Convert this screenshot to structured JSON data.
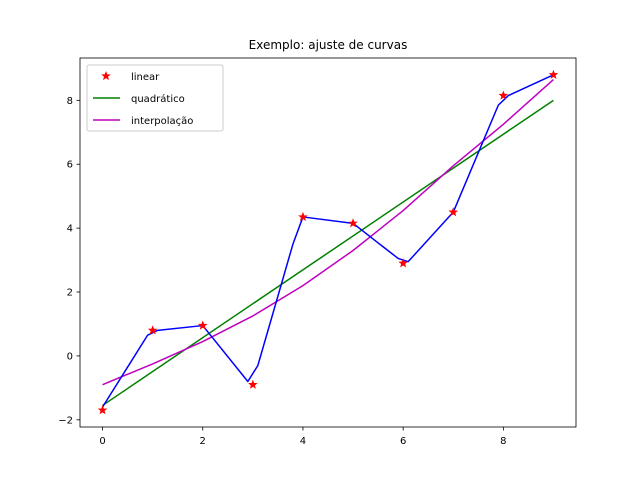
{
  "chart_data": {
    "type": "line",
    "title": "Exemplo: ajuste de curvas",
    "xlabel": "",
    "ylabel": "",
    "xlim": [
      -0.45,
      9.45
    ],
    "ylim": [
      -2.225,
      9.325
    ],
    "xticks": [
      0,
      2,
      4,
      6,
      8
    ],
    "yticks": [
      -2,
      0,
      2,
      4,
      6,
      8
    ],
    "grid": false,
    "legend_position": "upper-left",
    "series": [
      {
        "name": "linear",
        "kind": "markers",
        "marker": "star",
        "color": "#ff0000",
        "x": [
          0,
          1,
          2,
          3,
          4,
          5,
          6,
          7,
          8,
          9
        ],
        "y": [
          -1.7,
          0.8,
          0.95,
          -0.9,
          4.35,
          4.15,
          2.9,
          4.5,
          8.15,
          8.8
        ]
      },
      {
        "name": "quadrático",
        "kind": "line",
        "color": "#008000",
        "x": [
          0,
          9
        ],
        "y": [
          -1.55,
          8.0
        ]
      },
      {
        "name": "interpolação",
        "kind": "line",
        "color": "#bf00bf",
        "x": [
          0,
          1,
          2,
          3,
          4,
          5,
          6,
          7,
          8,
          9
        ],
        "y": [
          -0.9,
          -0.25,
          0.45,
          1.25,
          2.2,
          3.3,
          4.55,
          5.95,
          7.25,
          8.65
        ]
      },
      {
        "name": "",
        "kind": "line",
        "color": "#0000ff",
        "x": [
          0,
          0.9,
          1.1,
          2.0,
          2.9,
          3.1,
          3.8,
          4.0,
          5.0,
          5.9,
          6.1,
          7.0,
          7.9,
          8.1,
          9.0
        ],
        "y": [
          -1.6,
          0.65,
          0.8,
          0.95,
          -0.8,
          -0.3,
          3.5,
          4.35,
          4.15,
          3.05,
          2.95,
          4.5,
          7.85,
          8.15,
          8.8
        ]
      }
    ]
  }
}
